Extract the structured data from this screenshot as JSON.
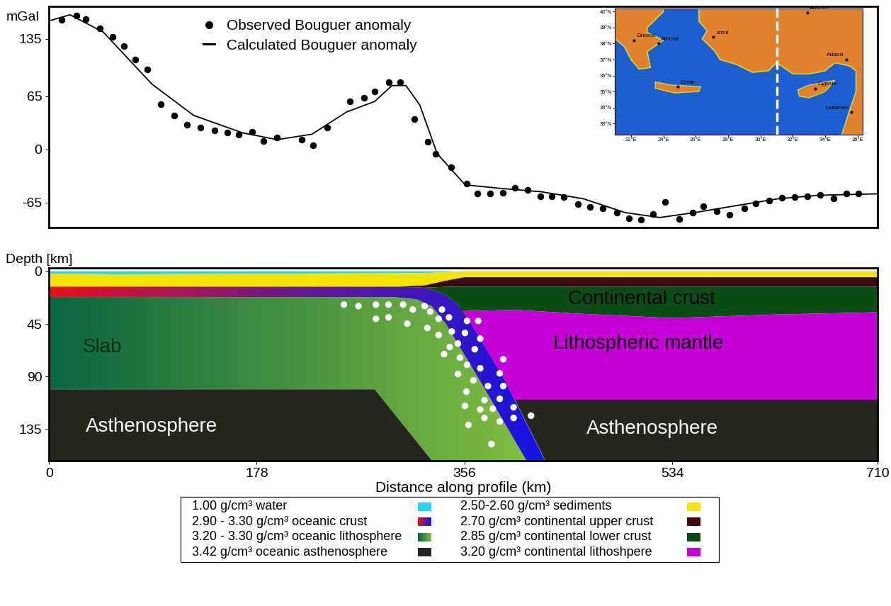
{
  "chart_data": [
    {
      "type": "line",
      "y_label": "mGal",
      "xlim": [
        0,
        710
      ],
      "ylim": [
        -95,
        175
      ],
      "yticks": [
        -65,
        0,
        65,
        135
      ],
      "tick_labels": "y",
      "legend": "upper left",
      "series": [
        {
          "name": "Observed Bouguer anomaly",
          "type": "scatter",
          "color": "#000000",
          "marker": "o",
          "x": [
            10.7,
            23.8,
            31.6,
            43.5,
            54.2,
            64.4,
            73.9,
            84.1,
            96.0,
            107.3,
            118.0,
            129.9,
            141.8,
            152.6,
            162.7,
            174.1,
            183.6,
            195.5,
            216.4,
            226.5,
            238.4,
            258.1,
            270.0,
            279.0,
            290.9,
            301.0,
            312.9,
            324.3,
            331.4,
            344.5,
            357.7,
            367.2,
            377.9,
            388.6,
            399.4,
            410.1,
            420.8,
            431.0,
            441.1,
            453.0,
            463.8,
            474.5,
            486.4,
            497.1,
            507.3,
            517.4,
            527.6,
            540.1,
            551.4,
            560.9,
            572.3,
            583.0,
            596.1,
            605.6,
            616.9,
            627.7,
            639.0,
            649.8,
            660.5,
            672.4,
            683.2,
            693.3
          ],
          "values": [
            158.5,
            163.6,
            159.3,
            147.5,
            137.3,
            126.3,
            109.3,
            97.5,
            55.1,
            41.5,
            30.5,
            26.3,
            22.9,
            20.3,
            17.8,
            21.2,
            10.2,
            14.4,
            11.9,
            5.1,
            26.3,
            58.5,
            62.7,
            71.2,
            82.2,
            82.2,
            37.3,
            9.3,
            -5.1,
            -22.0,
            -41.5,
            -53.4,
            -53.4,
            -52.5,
            -46.6,
            -49.2,
            -57.6,
            -57.6,
            -58.5,
            -66.9,
            -70.3,
            -72.0,
            -77.1,
            -83.9,
            -85.6,
            -78.8,
            -64.4,
            -84.7,
            -77.1,
            -69.5,
            -75.4,
            -79.7,
            -72.0,
            -66.1,
            -62.7,
            -59.3,
            -58.5,
            -57.6,
            -55.9,
            -60.2,
            -54.2,
            -54.2
          ]
        },
        {
          "name": "Calculated Bouguer anomaly",
          "type": "line",
          "color": "#000000",
          "line_style": "solid",
          "x": [
            1.8,
            17.9,
            46.5,
            88.2,
            124.0,
            165.7,
            195.5,
            225.3,
            255.1,
            279.0,
            293.9,
            305.8,
            317.7,
            332.6,
            356.5,
            386.3,
            422.0,
            457.8,
            493.6,
            523.4,
            553.2,
            588.9,
            624.7,
            660.5,
            710
          ],
          "values": [
            157.6,
            164.4,
            143.2,
            79.7,
            41.5,
            20.3,
            11.9,
            18.6,
            45.8,
            58.5,
            78.0,
            78.0,
            54.2,
            -5.1,
            -43.2,
            -47.5,
            -51.7,
            -60.2,
            -77.1,
            -83.1,
            -77.1,
            -68.6,
            -60.2,
            -55.9,
            -54.2
          ]
        }
      ]
    },
    {
      "type": "cross_section",
      "x_label": "Distance along profile (km)",
      "y_label": "Depth [km]",
      "xlim": [
        0,
        710
      ],
      "xticks": [
        0,
        178,
        356,
        534,
        710
      ],
      "ylim": [
        162,
        -3
      ],
      "yticks": [
        0,
        45,
        90,
        135
      ],
      "units": [
        {
          "text": "1.00 g/cm³ water",
          "color": "#22d8ee",
          "polygons": [
            [
              [
                0,
                0
              ],
              [
                356,
                0
              ],
              [
                320,
                1.5
              ],
              [
                60,
                2.5
              ],
              [
                0,
                2
              ]
            ]
          ]
        },
        {
          "text": "2.90 - 3.30 g/cm³ oceanic crust",
          "colors": [
            "#e8121c",
            "#6a1a8e",
            "#1414e6"
          ],
          "polygons": [
            [
              [
                0,
                13
              ],
              [
                300,
                13
              ],
              [
                322,
                14
              ],
              [
                338,
                19
              ],
              [
                350,
                28
              ],
              [
                362,
                45
              ],
              [
                389,
                90
              ],
              [
                425,
                162
              ],
              [
                409,
                162
              ],
              [
                367,
                90
              ],
              [
                340,
                45
              ],
              [
                328,
                30
              ],
              [
                315,
                24
              ],
              [
                295,
                22
              ],
              [
                0,
                22
              ]
            ]
          ]
        },
        {
          "text": "3.20 - 3.30 g/cm³ oceanic lithosphere",
          "colors": [
            "#0a6540",
            "#80be40"
          ],
          "polygons": [
            [
              [
                0,
                22
              ],
              [
                295,
                22
              ],
              [
                315,
                24
              ],
              [
                328,
                30
              ],
              [
                340,
                45
              ],
              [
                367,
                90
              ],
              [
                409,
                162
              ],
              [
                328,
                162
              ],
              [
                279,
                101
              ],
              [
                0,
                101
              ]
            ]
          ]
        },
        {
          "text": "3.42 g/cm³ oceanic asthenosphere",
          "color": "#25271f",
          "polygons": [
            [
              [
                0,
                101
              ],
              [
                279,
                101
              ],
              [
                328,
                162
              ],
              [
                0,
                162
              ]
            ],
            [
              [
                399,
                110
              ],
              [
                710,
                110
              ],
              [
                710,
                162
              ],
              [
                425,
                162
              ]
            ]
          ]
        },
        {
          "text": "2.50-2.60 g/cm³ sediments",
          "color": "#f4e406",
          "polygons": [
            [
              [
                0,
                2
              ],
              [
                60,
                2.5
              ],
              [
                320,
                1.5
              ],
              [
                356,
                0
              ],
              [
                710,
                0
              ],
              [
                710,
                5
              ],
              [
                356,
                5
              ],
              [
                340,
                8
              ],
              [
                322,
                12
              ],
              [
                300,
                13
              ],
              [
                0,
                13
              ]
            ]
          ]
        },
        {
          "text": "2.70 g/cm³ continental upper crust",
          "color": "#3b0a12",
          "polygons": [
            [
              [
                300,
                13
              ],
              [
                322,
                12
              ],
              [
                340,
                8
              ],
              [
                356,
                5
              ],
              [
                710,
                5
              ],
              [
                710,
                13
              ],
              [
                345,
                13
              ],
              [
                322,
                14
              ]
            ]
          ]
        },
        {
          "text": "2.85 g/cm³ continental lower crust",
          "color": "#0a4d14",
          "polygons": [
            [
              [
                322,
                14
              ],
              [
                345,
                13
              ],
              [
                710,
                13
              ],
              [
                710,
                35
              ],
              [
                620,
                37
              ],
              [
                534,
                40
              ],
              [
                450,
                36
              ],
              [
                400,
                33
              ],
              [
                354,
                34
              ],
              [
                350,
                28
              ],
              [
                338,
                19
              ]
            ]
          ]
        },
        {
          "text": "3.20 g/cm³ continental lithoshpere",
          "color": "#c400d6",
          "polygons": [
            [
              [
                354,
                34
              ],
              [
                400,
                33
              ],
              [
                450,
                36
              ],
              [
                534,
                40
              ],
              [
                620,
                37
              ],
              [
                710,
                35
              ],
              [
                710,
                110
              ],
              [
                399,
                110
              ],
              [
                389,
                90
              ],
              [
                362,
                45
              ]
            ]
          ]
        }
      ],
      "labels": [
        {
          "text": "Slab",
          "x": 46,
          "depth": 65,
          "color": "#0a2a10"
        },
        {
          "text": "Asthenosphere",
          "x": 88,
          "depth": 133,
          "color": "#ffffff"
        },
        {
          "text": "Continental crust",
          "x": 508,
          "depth": 24,
          "color": "#000000"
        },
        {
          "text": "Lithospheric mantle",
          "x": 505,
          "depth": 62,
          "color": "#000000"
        },
        {
          "text": "Asthenosphere",
          "x": 517,
          "depth": 135,
          "color": "#ffffff"
        }
      ],
      "series": [
        {
          "type": "scatter",
          "color": "#ffffff",
          "marker": "o",
          "x": [
            252.7,
            265.2,
            280.1,
            290.9,
            303.4,
            311.7,
            321.8,
            326.6,
            336.7,
            280.1,
            290.9,
            307.0,
            324.2,
            333.8,
            342.7,
            333.8,
            345.1,
            358.2,
            367.7,
            350.4,
            356.4,
            343.3,
            338.5,
            352.2,
            364.8,
            369.5,
            358.2,
            369.5,
            389.2,
            386.2,
            350.4,
            363.6,
            376.1,
            389.2,
            357.6,
            373.1,
            386.2,
            356.4,
            369.5,
            380.2,
            398.1,
            413.0,
            359.4,
            373.1,
            386.2,
            398.1,
            379.1
          ],
          "values": [
            28.5,
            29.7,
            28.5,
            28.5,
            28.5,
            32.7,
            29.7,
            34.5,
            32.7,
            40.6,
            39.4,
            44.8,
            48.5,
            40.6,
            39.4,
            54.5,
            51.5,
            42.4,
            42.4,
            61.8,
            52.7,
            64.8,
            70.9,
            73.9,
            66.7,
            57.6,
            80.0,
            83.0,
            75.2,
            87.3,
            87.9,
            93.3,
            98.2,
            98.2,
            103.0,
            110.3,
            109.1,
            115.2,
            118.2,
            117.6,
            116.4,
            123.6,
            131.5,
            125.5,
            128.5,
            125.5,
            147.9
          ]
        }
      ]
    },
    {
      "type": "map",
      "xlim": [
        21,
        36.3
      ],
      "ylim": [
        32.3,
        40.2
      ],
      "xticks": [
        {
          "value": 22,
          "label": "22°E"
        },
        {
          "value": 24,
          "label": "24°E"
        },
        {
          "value": 26,
          "label": "26°E"
        },
        {
          "value": 28,
          "label": "28°E"
        },
        {
          "value": 30,
          "label": "30°E"
        },
        {
          "value": 32,
          "label": "32°E"
        },
        {
          "value": 34,
          "label": "34°E"
        },
        {
          "value": 36,
          "label": "36°E"
        }
      ],
      "yticks": [
        {
          "value": 33,
          "label": "33°N"
        },
        {
          "value": 34,
          "label": "34°N"
        },
        {
          "value": 35,
          "label": "35°N"
        },
        {
          "value": 36,
          "label": "36°N"
        },
        {
          "value": 37,
          "label": "37°N"
        },
        {
          "value": 38,
          "label": "38°N"
        },
        {
          "value": 39,
          "label": "39°N"
        },
        {
          "value": 40,
          "label": "40°N"
        }
      ],
      "profile_lon": 31,
      "places": [
        {
          "name": "Greece",
          "lon": 22.2,
          "lat": 38.2
        },
        {
          "name": "Athinai",
          "lon": 23.7,
          "lat": 38.0
        },
        {
          "name": "Izmir",
          "lon": 27.1,
          "lat": 38.4
        },
        {
          "name": "Ankara",
          "lon": 32.9,
          "lat": 39.95
        },
        {
          "name": "Adana",
          "lon": 35.3,
          "lat": 37.0
        },
        {
          "name": "Crete",
          "lon": 24.9,
          "lat": 35.3
        },
        {
          "name": "Cyprus",
          "lon": 33.4,
          "lat": 35.2
        },
        {
          "name": "Lebanon",
          "lon": 35.6,
          "lat": 33.7
        }
      ]
    }
  ]
}
